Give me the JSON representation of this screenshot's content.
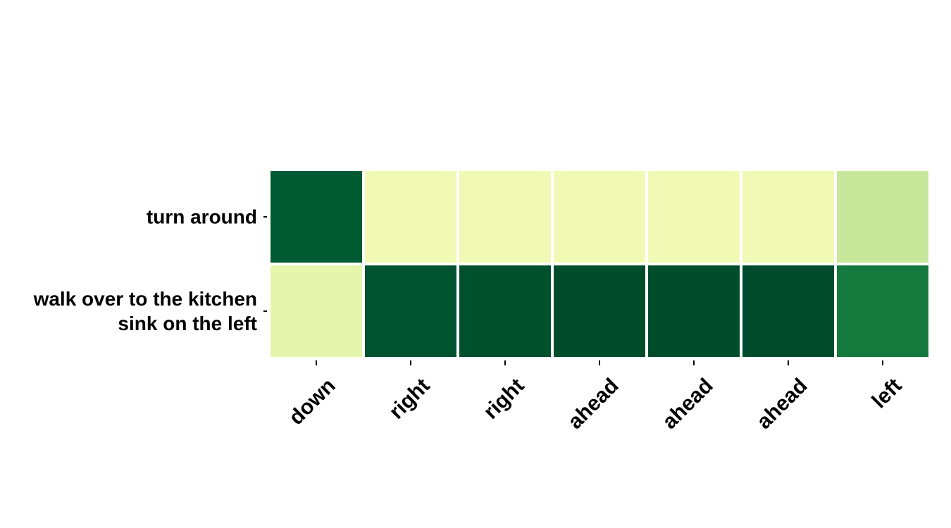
{
  "chart_data": {
    "type": "heatmap",
    "title": "",
    "xlabel": "",
    "ylabel": "",
    "columns": [
      "down",
      "right",
      "right",
      "ahead",
      "ahead",
      "ahead",
      "left"
    ],
    "rows": [
      [
        "turn around"
      ],
      [
        "walk over to the kitchen",
        "sink on the left"
      ]
    ],
    "values": [
      [
        0.92,
        0.15,
        0.15,
        0.15,
        0.15,
        0.15,
        0.3
      ],
      [
        0.2,
        0.95,
        0.96,
        0.97,
        0.97,
        0.98,
        0.8
      ]
    ],
    "colormap": "YlGn",
    "vmin": 0,
    "vmax": 1,
    "colorbar": false,
    "grid": false,
    "cell_border_color": "#ffffff"
  }
}
